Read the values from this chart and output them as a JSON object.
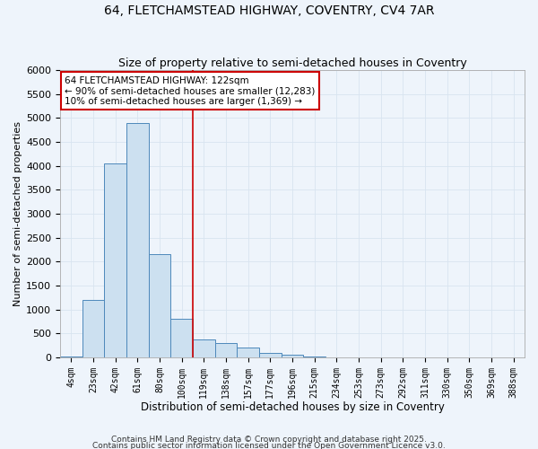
{
  "title": "64, FLETCHAMSTEAD HIGHWAY, COVENTRY, CV4 7AR",
  "subtitle": "Size of property relative to semi-detached houses in Coventry",
  "xlabel": "Distribution of semi-detached houses by size in Coventry",
  "ylabel": "Number of semi-detached properties",
  "bar_color": "#cce0f0",
  "bar_edge_color": "#4d88bb",
  "categories": [
    "4sqm",
    "23sqm",
    "42sqm",
    "61sqm",
    "80sqm",
    "100sqm",
    "119sqm",
    "138sqm",
    "157sqm",
    "177sqm",
    "196sqm",
    "215sqm",
    "234sqm",
    "253sqm",
    "273sqm",
    "292sqm",
    "311sqm",
    "330sqm",
    "350sqm",
    "369sqm",
    "388sqm"
  ],
  "values": [
    25,
    1200,
    4050,
    4900,
    2150,
    800,
    380,
    290,
    200,
    100,
    50,
    10,
    5,
    2,
    1,
    0,
    0,
    0,
    0,
    0,
    0
  ],
  "annotation_text": "64 FLETCHAMSTEAD HIGHWAY: 122sqm\n← 90% of semi-detached houses are smaller (12,283)\n10% of semi-detached houses are larger (1,369) →",
  "annotation_box_color": "#ffffff",
  "annotation_box_edge": "#cc0000",
  "ylim": [
    0,
    6000
  ],
  "yticks": [
    0,
    500,
    1000,
    1500,
    2000,
    2500,
    3000,
    3500,
    4000,
    4500,
    5000,
    5500,
    6000
  ],
  "red_line_color": "#cc0000",
  "footer1": "Contains HM Land Registry data © Crown copyright and database right 2025.",
  "footer2": "Contains public sector information licensed under the Open Government Licence v3.0.",
  "background_color": "#eef4fb",
  "grid_color": "#d8e4f0",
  "title_fontsize": 10,
  "subtitle_fontsize": 9
}
